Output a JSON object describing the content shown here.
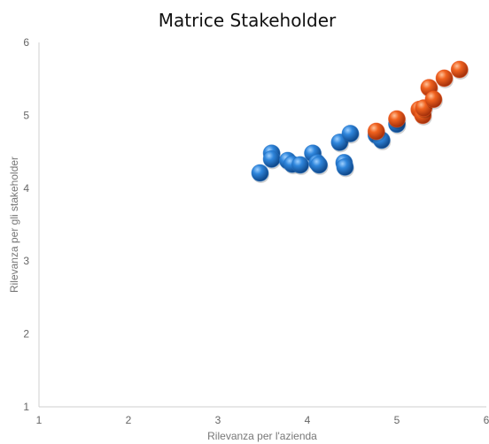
{
  "chart_data": {
    "type": "scatter",
    "title": "Matrice Stakeholder",
    "xlabel": "Rilevanza per l'azienda",
    "ylabel": "Rilevanza per gli stakeholder",
    "xlim": [
      1,
      6
    ],
    "ylim": [
      1,
      6
    ],
    "xticks": [
      "1",
      "2",
      "3",
      "4",
      "5",
      "6"
    ],
    "yticks": [
      "1",
      "2",
      "3",
      "4",
      "5",
      "6"
    ],
    "grid": false,
    "legend": "none",
    "colors": {
      "blue": "#1f6fc4",
      "orange": "#e8501a"
    },
    "series": [
      {
        "color": "blue",
        "points": [
          [
            3.47,
            4.21
          ],
          [
            3.6,
            4.48
          ],
          [
            3.6,
            4.4
          ],
          [
            3.78,
            4.38
          ],
          [
            3.83,
            4.33
          ],
          [
            3.92,
            4.32
          ],
          [
            4.06,
            4.48
          ],
          [
            4.11,
            4.35
          ],
          [
            4.13,
            4.32
          ],
          [
            4.36,
            4.63
          ],
          [
            4.41,
            4.35
          ],
          [
            4.42,
            4.29
          ],
          [
            4.48,
            4.75
          ],
          [
            4.77,
            4.73
          ],
          [
            4.83,
            4.66
          ],
          [
            5.0,
            4.88
          ]
        ]
      },
      {
        "color": "orange",
        "points": [
          [
            4.77,
            4.78
          ],
          [
            5.0,
            4.95
          ],
          [
            5.25,
            5.08
          ],
          [
            5.29,
            5.0
          ],
          [
            5.3,
            5.1
          ],
          [
            5.36,
            5.38
          ],
          [
            5.41,
            5.22
          ],
          [
            5.53,
            5.51
          ],
          [
            5.7,
            5.63
          ]
        ]
      }
    ]
  }
}
